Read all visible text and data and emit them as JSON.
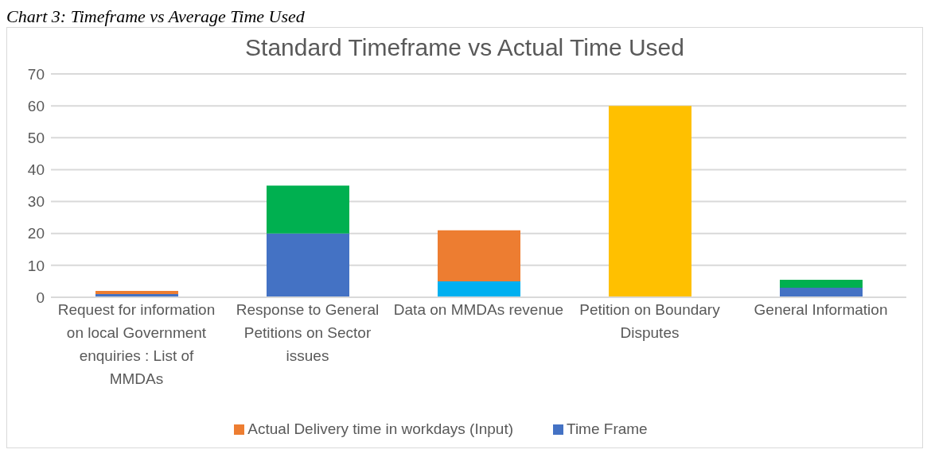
{
  "chart_data": {
    "type": "bar",
    "title": "Standard Timeframe vs Actual Time  Used",
    "annotations": [
      "Chart 3: Timeframe vs Average Time Used"
    ],
    "categories": [
      "Request for information on local Government enquiries : List of MMDAs",
      "Response to General Petitions on Sector issues",
      "Data on MMDAs revenue",
      "Petition on Boundary Disputes",
      "General Information"
    ],
    "series": [
      {
        "name": "Time Frame",
        "color": "#4472c4",
        "colors": [
          "#4472c4",
          "#4472c4",
          "#00b0f0",
          "#ffc000",
          "#4472c4"
        ],
        "values": [
          1,
          20,
          5,
          60,
          3
        ]
      },
      {
        "name": "Actual Delivery time in workdays  (Input)",
        "color": "#ed7d31",
        "colors": [
          "#ed7d31",
          "#00b050",
          "#ed7d31",
          "#ed7d31",
          "#00b050"
        ],
        "values": [
          1,
          15,
          16,
          0,
          2.5
        ]
      }
    ],
    "stacked": true,
    "ylim": [
      0,
      70
    ],
    "yticks": [
      0,
      10,
      20,
      30,
      40,
      50,
      60,
      70
    ],
    "grid": "y",
    "legend": "bottom"
  }
}
